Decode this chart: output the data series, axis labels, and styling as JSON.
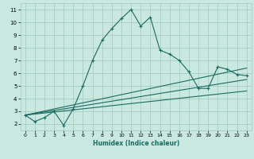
{
  "xlabel": "Humidex (Indice chaleur)",
  "ylabel": "",
  "background_color": "#c8e8e0",
  "grid_color": "#a0c8c0",
  "line_color": "#1a6b60",
  "xlim": [
    -0.5,
    23.5
  ],
  "ylim": [
    1.5,
    11.5
  ],
  "xticks": [
    0,
    1,
    2,
    3,
    4,
    5,
    6,
    7,
    8,
    9,
    10,
    11,
    12,
    13,
    14,
    15,
    16,
    17,
    18,
    19,
    20,
    21,
    22,
    23
  ],
  "yticks": [
    2,
    3,
    4,
    5,
    6,
    7,
    8,
    9,
    10,
    11
  ],
  "curve1_x": [
    0,
    1,
    2,
    3,
    4,
    5,
    6,
    7,
    8,
    9,
    10,
    11,
    12,
    13,
    14,
    15,
    16,
    17,
    18,
    19,
    20,
    21,
    22,
    23
  ],
  "curve1_y": [
    2.7,
    2.2,
    2.5,
    3.0,
    1.9,
    3.2,
    5.0,
    7.0,
    8.6,
    9.5,
    10.3,
    11.0,
    9.7,
    10.4,
    7.8,
    7.5,
    7.0,
    6.1,
    4.8,
    4.8,
    6.5,
    6.3,
    5.9,
    5.8
  ],
  "line2_x": [
    0,
    23
  ],
  "line2_y": [
    2.7,
    6.4
  ],
  "line3_x": [
    0,
    23
  ],
  "line3_y": [
    2.7,
    5.5
  ],
  "line4_x": [
    0,
    23
  ],
  "line4_y": [
    2.7,
    4.6
  ]
}
